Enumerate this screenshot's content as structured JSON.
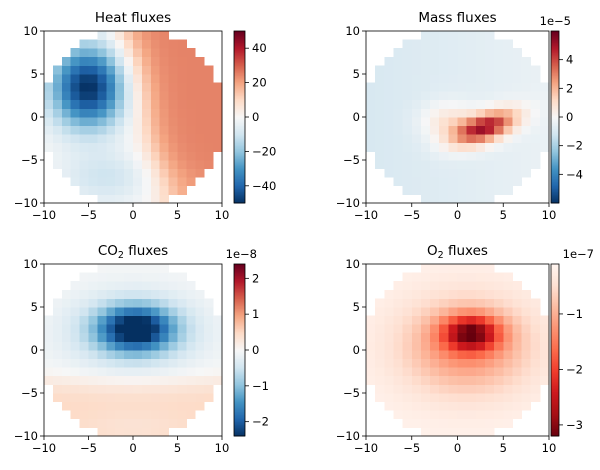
{
  "chart_data": [
    {
      "type": "heatmap",
      "title": "Heat fluxes",
      "xlim": [
        -10,
        10
      ],
      "ylim": [
        -10,
        10
      ],
      "xticks": [
        -10,
        -5,
        0,
        5,
        10
      ],
      "yticks": [
        -10,
        -5,
        0,
        5,
        10
      ],
      "colormap": "RdBu_r",
      "color_range": [
        -50,
        50
      ],
      "colorbar_ticks": [
        -40,
        -20,
        0,
        20,
        40
      ],
      "colorbar_offset": "",
      "domain": "circle, radius 10, grid spacing 1",
      "features": [
        {
          "kind": "blob",
          "x": -5,
          "y": 3.5,
          "value": -50
        },
        {
          "kind": "blob",
          "x": 9,
          "y": 1.5,
          "value": 25
        }
      ]
    },
    {
      "type": "heatmap",
      "title": "Mass fluxes",
      "xlim": [
        -10,
        10
      ],
      "ylim": [
        -10,
        10
      ],
      "xticks": [
        -10,
        -5,
        0,
        5,
        10
      ],
      "yticks": [
        -10,
        -5,
        0,
        5,
        10
      ],
      "colormap": "RdBu_r",
      "color_range": [
        -6,
        6
      ],
      "colorbar_ticks": [
        -4,
        -2,
        0,
        2,
        4
      ],
      "colorbar_offset": "1e−5",
      "domain": "circle, radius 10, grid spacing 1",
      "features": [
        {
          "kind": "blob",
          "x": 3,
          "y": -1.2,
          "value": 5.5
        },
        {
          "kind": "background",
          "value": -0.8
        }
      ]
    },
    {
      "type": "heatmap",
      "title": "CO2 fluxes",
      "title_main": "CO",
      "title_sub": "2",
      "title_rest": " fluxes",
      "xlim": [
        -10,
        10
      ],
      "ylim": [
        -10,
        10
      ],
      "xticks": [
        -10,
        -5,
        0,
        5,
        10
      ],
      "yticks": [
        -10,
        -5,
        0,
        5,
        10
      ],
      "colormap": "RdBu_r",
      "color_range": [
        -2.4,
        2.4
      ],
      "colorbar_ticks": [
        -2,
        -1,
        0,
        1,
        2
      ],
      "colorbar_offset": "1e−8",
      "domain": "circle, radius 10, grid spacing 1",
      "features": [
        {
          "kind": "blob",
          "x": 0,
          "y": 2.5,
          "value": -2.3
        },
        {
          "kind": "band",
          "y": -6,
          "value": 0.5
        }
      ]
    },
    {
      "type": "heatmap",
      "title": "O2 fluxes",
      "title_main": "O",
      "title_sub": "2",
      "title_rest": " fluxes",
      "xlim": [
        -10,
        10
      ],
      "ylim": [
        -10,
        10
      ],
      "xticks": [
        -10,
        -5,
        0,
        5,
        10
      ],
      "yticks": [
        -10,
        -5,
        0,
        5,
        10
      ],
      "colormap": "Reds_r",
      "color_range": [
        -3.2,
        -0.1
      ],
      "colorbar_ticks": [
        -3,
        -2,
        -1
      ],
      "colorbar_offset": "1e−7",
      "domain": "circle, radius 10, grid spacing 1",
      "features": [
        {
          "kind": "blob",
          "x": 1.5,
          "y": 2,
          "value": -3.2
        }
      ]
    }
  ]
}
